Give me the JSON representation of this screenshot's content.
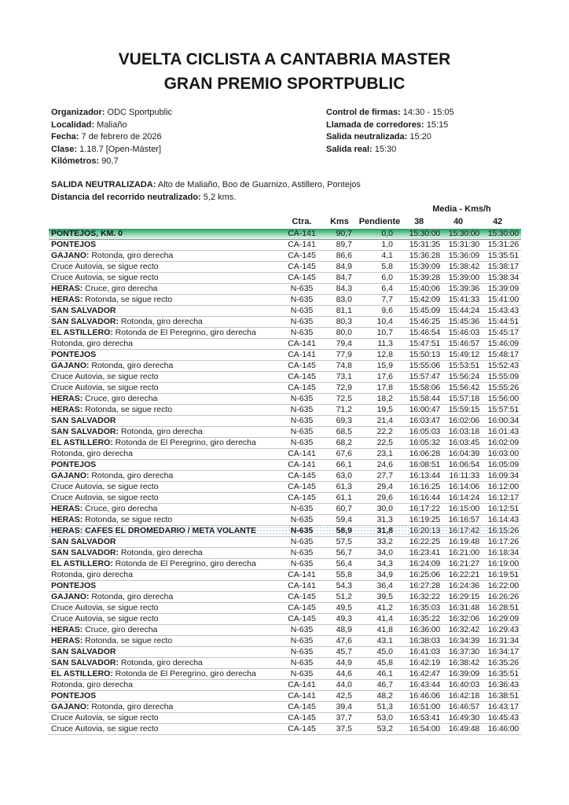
{
  "title": {
    "line1": "VUELTA CICLISTA A CANTABRIA MASTER",
    "line2": "GRAN PREMIO SPORTPUBLIC"
  },
  "info_left": [
    {
      "label": "Organizador:",
      "value": " ODC Sportpublic"
    },
    {
      "label": "Localidad:",
      "value": " Maliaño"
    },
    {
      "label": "Fecha:",
      "value": " 7 de febrero de 2026"
    },
    {
      "label": "Clase:",
      "value": " 1.18.7 [Open-Máster]"
    },
    {
      "label": "Kilómetros:",
      "value": " 90,7"
    }
  ],
  "info_right": [
    {
      "label": "Control de firmas:",
      "value": " 14:30 - 15:05"
    },
    {
      "label": "Llamada de corredores:",
      "value": " 15:15"
    },
    {
      "label": "Salida neutralizada:",
      "value": " 15:20"
    },
    {
      "label": "Salida real:",
      "value": " 15:30"
    }
  ],
  "notes": [
    {
      "label": "SALIDA NEUTRALIZADA:",
      "value": " Alto de Maliaño, Boo de Guarnizo, Astillero, Pontejos"
    },
    {
      "label": "Distancia del recorrido neutralizado:",
      "value": " 5,2 kms."
    }
  ],
  "table": {
    "media_header": "Media - Kms/h",
    "columns": {
      "road": "Ctra.",
      "kms": "Kms",
      "pend": "Pendiente",
      "v38": "38",
      "v40": "40",
      "v42": "42"
    },
    "rows": [
      {
        "name": "PONTEJOS, KM. 0",
        "desc": "",
        "ctra": "CA-141",
        "kms": "90,7",
        "pend": "0,0",
        "t38": "15:30:00",
        "t40": "15:30:00",
        "t42": "15:30:00",
        "hl": "green"
      },
      {
        "name": "PONTEJOS",
        "desc": "",
        "ctra": "CA-141",
        "kms": "89,7",
        "pend": "1,0",
        "t38": "15:31:35",
        "t40": "15:31:30",
        "t42": "15:31:26"
      },
      {
        "name": "GAJANO:",
        "desc": "Rotonda, giro derecha",
        "ctra": "CA-145",
        "kms": "86,6",
        "pend": "4,1",
        "t38": "15:36:28",
        "t40": "15:36:09",
        "t42": "15:35:51"
      },
      {
        "name": "",
        "desc": "Cruce Autovia, se sigue recto",
        "ctra": "CA-145",
        "kms": "84,9",
        "pend": "5,8",
        "t38": "15:39:09",
        "t40": "15:38:42",
        "t42": "15:38:17"
      },
      {
        "name": "",
        "desc": "Cruce Autovia, se sigue recto",
        "ctra": "CA-145",
        "kms": "84,7",
        "pend": "6,0",
        "t38": "15:39:28",
        "t40": "15:39:00",
        "t42": "15:38:34"
      },
      {
        "name": "HERAS:",
        "desc": "Cruce, giro derecha",
        "ctra": "N-635",
        "kms": "84,3",
        "pend": "6,4",
        "t38": "15:40:06",
        "t40": "15:39:36",
        "t42": "15:39:09"
      },
      {
        "name": "HERAS:",
        "desc": "Rotonda, se sigue recto",
        "ctra": "N-635",
        "kms": "83,0",
        "pend": "7,7",
        "t38": "15:42:09",
        "t40": "15:41:33",
        "t42": "15:41:00"
      },
      {
        "name": "SAN SALVADOR",
        "desc": "",
        "ctra": "N-635",
        "kms": "81,1",
        "pend": "9,6",
        "t38": "15:45:09",
        "t40": "15:44:24",
        "t42": "15:43:43"
      },
      {
        "name": "SAN SALVADOR:",
        "desc": "Rotonda, giro derecha",
        "ctra": "N-635",
        "kms": "80,3",
        "pend": "10,4",
        "t38": "15:46:25",
        "t40": "15:45:36",
        "t42": "15:44:51"
      },
      {
        "name": "EL ASTILLERO:",
        "desc": "Rotonda de El Peregrino, giro derecha",
        "ctra": "N-635",
        "kms": "80,0",
        "pend": "10,7",
        "t38": "15:46:54",
        "t40": "15:46:03",
        "t42": "15:45:17"
      },
      {
        "name": "",
        "desc": "Rotonda, giro derecha",
        "ctra": "CA-141",
        "kms": "79,4",
        "pend": "11,3",
        "t38": "15:47:51",
        "t40": "15:46:57",
        "t42": "15:46:09"
      },
      {
        "name": "PONTEJOS",
        "desc": "",
        "ctra": "CA-141",
        "kms": "77,9",
        "pend": "12,8",
        "t38": "15:50:13",
        "t40": "15:49:12",
        "t42": "15:48:17"
      },
      {
        "name": "GAJANO:",
        "desc": "Rotonda, giro derecha",
        "ctra": "CA-145",
        "kms": "74,8",
        "pend": "15,9",
        "t38": "15:55:06",
        "t40": "15:53:51",
        "t42": "15:52:43"
      },
      {
        "name": "",
        "desc": "Cruce Autovia, se sigue recto",
        "ctra": "CA-145",
        "kms": "73,1",
        "pend": "17,6",
        "t38": "15:57:47",
        "t40": "15:56:24",
        "t42": "15:55:09"
      },
      {
        "name": "",
        "desc": "Cruce Autovia, se sigue recto",
        "ctra": "CA-145",
        "kms": "72,9",
        "pend": "17,8",
        "t38": "15:58:06",
        "t40": "15:56:42",
        "t42": "15:55:26"
      },
      {
        "name": "HERAS:",
        "desc": "Cruce, giro derecha",
        "ctra": "N-635",
        "kms": "72,5",
        "pend": "18,2",
        "t38": "15:58:44",
        "t40": "15:57:18",
        "t42": "15:56:00"
      },
      {
        "name": "HERAS:",
        "desc": "Rotonda, se sigue recto",
        "ctra": "N-635",
        "kms": "71,2",
        "pend": "19,5",
        "t38": "16:00:47",
        "t40": "15:59:15",
        "t42": "15:57:51"
      },
      {
        "name": "SAN SALVADOR",
        "desc": "",
        "ctra": "N-635",
        "kms": "69,3",
        "pend": "21,4",
        "t38": "16:03:47",
        "t40": "16:02:06",
        "t42": "16:00:34"
      },
      {
        "name": "SAN SALVADOR:",
        "desc": "Rotonda, giro derecha",
        "ctra": "N-635",
        "kms": "68,5",
        "pend": "22,2",
        "t38": "16:05:03",
        "t40": "16:03:18",
        "t42": "16:01:43"
      },
      {
        "name": "EL ASTILLERO:",
        "desc": "Rotonda de El Peregrino, giro derecha",
        "ctra": "N-635",
        "kms": "68,2",
        "pend": "22,5",
        "t38": "16:05:32",
        "t40": "16:03:45",
        "t42": "16:02:09"
      },
      {
        "name": "",
        "desc": "Rotonda, giro derecha",
        "ctra": "CA-141",
        "kms": "67,6",
        "pend": "23,1",
        "t38": "16:06:28",
        "t40": "16:04:39",
        "t42": "16:03:00"
      },
      {
        "name": "PONTEJOS",
        "desc": "",
        "ctra": "CA-141",
        "kms": "66,1",
        "pend": "24,6",
        "t38": "16:08:51",
        "t40": "16:06:54",
        "t42": "16:05:09"
      },
      {
        "name": "GAJANO:",
        "desc": "Rotonda, giro derecha",
        "ctra": "CA-145",
        "kms": "63,0",
        "pend": "27,7",
        "t38": "16:13:44",
        "t40": "16:11:33",
        "t42": "16:09:34"
      },
      {
        "name": "",
        "desc": "Cruce Autovia, se sigue recto",
        "ctra": "CA-145",
        "kms": "61,3",
        "pend": "29,4",
        "t38": "16:16:25",
        "t40": "16:14:06",
        "t42": "16:12:00"
      },
      {
        "name": "",
        "desc": "Cruce Autovia, se sigue recto",
        "ctra": "CA-145",
        "kms": "61,1",
        "pend": "29,6",
        "t38": "16:16:44",
        "t40": "16:14:24",
        "t42": "16:12:17"
      },
      {
        "name": "HERAS:",
        "desc": "Cruce, giro derecha",
        "ctra": "N-635",
        "kms": "60,7",
        "pend": "30,0",
        "t38": "16:17:22",
        "t40": "16:15:00",
        "t42": "16:12:51"
      },
      {
        "name": "HERAS:",
        "desc": "Rotonda, se sigue recto",
        "ctra": "N-635",
        "kms": "59,4",
        "pend": "31,3",
        "t38": "16:19:25",
        "t40": "16:16:57",
        "t42": "16:14:43"
      },
      {
        "name": "HERAS: CAFES EL DROMEDARIO / META VOLANTE",
        "desc": "",
        "ctra": "N-635",
        "kms": "58,9",
        "pend": "31,8",
        "t38": "16:20:13",
        "t40": "16:17:42",
        "t42": "16:15:26",
        "hl": "dots"
      },
      {
        "name": "SAN SALVADOR",
        "desc": "",
        "ctra": "N-635",
        "kms": "57,5",
        "pend": "33,2",
        "t38": "16:22:25",
        "t40": "16:19:48",
        "t42": "16:17:26"
      },
      {
        "name": "SAN SALVADOR:",
        "desc": "Rotonda, giro derecha",
        "ctra": "N-635",
        "kms": "56,7",
        "pend": "34,0",
        "t38": "16:23:41",
        "t40": "16:21:00",
        "t42": "16:18:34"
      },
      {
        "name": "EL ASTILLERO:",
        "desc": "Rotonda de El Peregrino, giro derecha",
        "ctra": "N-635",
        "kms": "56,4",
        "pend": "34,3",
        "t38": "16:24:09",
        "t40": "16:21:27",
        "t42": "16:19:00"
      },
      {
        "name": "",
        "desc": "Rotonda, giro derecha",
        "ctra": "CA-141",
        "kms": "55,8",
        "pend": "34,9",
        "t38": "16:25:06",
        "t40": "16:22:21",
        "t42": "16:19:51"
      },
      {
        "name": "PONTEJOS",
        "desc": "",
        "ctra": "CA-141",
        "kms": "54,3",
        "pend": "36,4",
        "t38": "16:27:28",
        "t40": "16:24:36",
        "t42": "16:22:00"
      },
      {
        "name": "GAJANO:",
        "desc": "Rotonda, giro derecha",
        "ctra": "CA-145",
        "kms": "51,2",
        "pend": "39,5",
        "t38": "16:32:22",
        "t40": "16:29:15",
        "t42": "16:26:26"
      },
      {
        "name": "",
        "desc": "Cruce Autovia, se sigue recto",
        "ctra": "CA-145",
        "kms": "49,5",
        "pend": "41,2",
        "t38": "16:35:03",
        "t40": "16:31:48",
        "t42": "16:28:51"
      },
      {
        "name": "",
        "desc": "Cruce Autovia, se sigue recto",
        "ctra": "CA-145",
        "kms": "49,3",
        "pend": "41,4",
        "t38": "16:35:22",
        "t40": "16:32:06",
        "t42": "16:29:09"
      },
      {
        "name": "HERAS:",
        "desc": "Cruce, giro derecha",
        "ctra": "N-635",
        "kms": "48,9",
        "pend": "41,8",
        "t38": "16:36:00",
        "t40": "16:32:42",
        "t42": "16:29:43"
      },
      {
        "name": "HERAS:",
        "desc": "Rotonda, se sigue recto",
        "ctra": "N-635",
        "kms": "47,6",
        "pend": "43,1",
        "t38": "16:38:03",
        "t40": "16:34:39",
        "t42": "16:31:34"
      },
      {
        "name": "SAN SALVADOR",
        "desc": "",
        "ctra": "N-635",
        "kms": "45,7",
        "pend": "45,0",
        "t38": "16:41:03",
        "t40": "16:37:30",
        "t42": "16:34:17"
      },
      {
        "name": "SAN SALVADOR:",
        "desc": "Rotonda, giro derecha",
        "ctra": "N-635",
        "kms": "44,9",
        "pend": "45,8",
        "t38": "16:42:19",
        "t40": "16:38:42",
        "t42": "16:35:26"
      },
      {
        "name": "EL ASTILLERO:",
        "desc": "Rotonda de El Peregrino, giro derecha",
        "ctra": "N-635",
        "kms": "44,6",
        "pend": "46,1",
        "t38": "16:42:47",
        "t40": "16:39:09",
        "t42": "16:35:51"
      },
      {
        "name": "",
        "desc": "Rotonda, giro derecha",
        "ctra": "CA-141",
        "kms": "44,0",
        "pend": "46,7",
        "t38": "16:43:44",
        "t40": "16:40:03",
        "t42": "16:36:43"
      },
      {
        "name": "PONTEJOS",
        "desc": "",
        "ctra": "CA-141",
        "kms": "42,5",
        "pend": "48,2",
        "t38": "16:46:06",
        "t40": "16:42:18",
        "t42": "16:38:51"
      },
      {
        "name": "GAJANO:",
        "desc": "Rotonda, giro derecha",
        "ctra": "CA-145",
        "kms": "39,4",
        "pend": "51,3",
        "t38": "16:51:00",
        "t40": "16:46:57",
        "t42": "16:43:17"
      },
      {
        "name": "",
        "desc": "Cruce Autovia, se sigue recto",
        "ctra": "CA-145",
        "kms": "37,7",
        "pend": "53,0",
        "t38": "16:53:41",
        "t40": "16:49:30",
        "t42": "16:45:43"
      },
      {
        "name": "",
        "desc": "Cruce Autovia, se sigue recto",
        "ctra": "CA-145",
        "kms": "37,5",
        "pend": "53,2",
        "t38": "16:54:00",
        "t40": "16:49:48",
        "t42": "16:46:00"
      }
    ]
  },
  "colors": {
    "highlight_green_top": "#22a15e",
    "highlight_green_bottom": "#edf8f1",
    "dots_blue": "#b5d6e6"
  }
}
